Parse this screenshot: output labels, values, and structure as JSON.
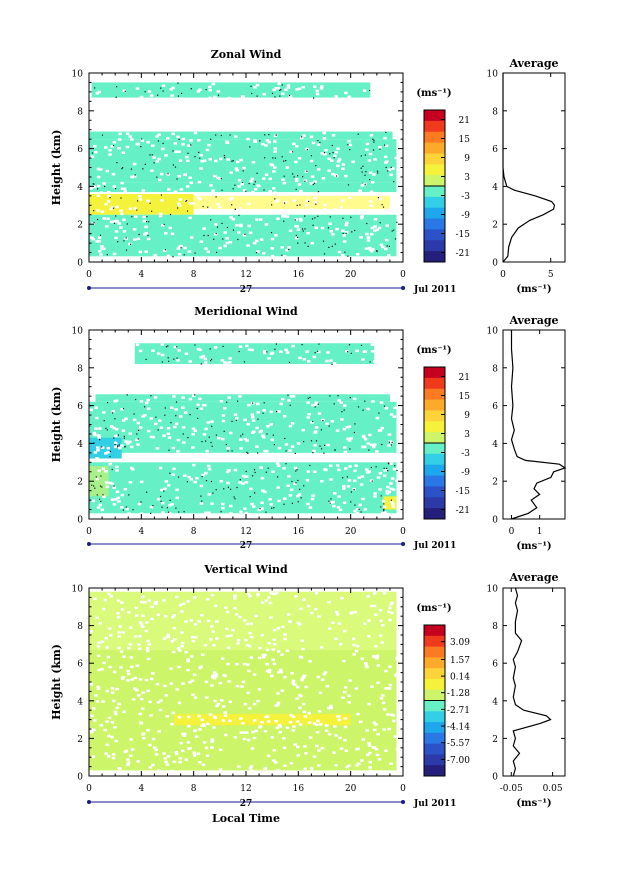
{
  "chart_data": [
    {
      "type": "heatmap",
      "title": "Zonal Wind",
      "xlabel": "",
      "ylabel": "Height (km)",
      "xlim": [
        0,
        24
      ],
      "ylim": [
        0,
        10
      ],
      "x_ticks": [
        "0",
        "4",
        "8",
        "12",
        "16",
        "20",
        "0"
      ],
      "y_ticks": [
        "0",
        "2",
        "4",
        "6",
        "8",
        "10"
      ],
      "date_bar": {
        "day": "27",
        "month_label": "Jul 2011"
      },
      "colorbar": {
        "unit": "(ms⁻¹)",
        "ticks": [
          "21",
          "15",
          "9",
          "3",
          "-3",
          "-9",
          "-15",
          "-21"
        ],
        "range": [
          -24,
          24
        ]
      },
      "bands": [
        {
          "y0": 8.7,
          "y1": 9.5,
          "x0": 0.2,
          "x1": 21.5,
          "color": "#66f0c6"
        },
        {
          "y0": 6.5,
          "y1": 6.9,
          "x0": 0.0,
          "x1": 23.2,
          "color": "#66f0c6"
        },
        {
          "y0": 4.2,
          "y1": 6.5,
          "x0": 0.0,
          "x1": 23.5,
          "color": "#66f0c6"
        },
        {
          "y0": 3.7,
          "y1": 4.2,
          "x0": 0.0,
          "x1": 23.5,
          "color": "#66f0c6"
        },
        {
          "y0": 2.5,
          "y1": 3.6,
          "x0": 0.0,
          "x1": 8.0,
          "color": "#f4f23a"
        },
        {
          "y0": 2.8,
          "y1": 3.5,
          "x0": 8.0,
          "x1": 23.0,
          "color": "#fffb8c"
        },
        {
          "y0": 1.9,
          "y1": 2.5,
          "x0": 0.0,
          "x1": 3.0,
          "color": "#f4f23a"
        },
        {
          "y0": 0.3,
          "y1": 2.5,
          "x0": 0.0,
          "x1": 23.5,
          "color": "#66f0c6"
        }
      ],
      "average": {
        "title": "Average",
        "xlabel": "(ms⁻¹)",
        "x_ticks": [
          "0",
          "5"
        ],
        "xlim": [
          0,
          6.5
        ],
        "y_ticks": [
          "0",
          "2",
          "4",
          "6",
          "8",
          "10"
        ],
        "ylim": [
          0,
          10
        ],
        "profile": [
          [
            0.0,
            0.0
          ],
          [
            0.3,
            0.5
          ],
          [
            0.8,
            0.6
          ],
          [
            1.3,
            0.9
          ],
          [
            1.8,
            1.6
          ],
          [
            2.2,
            2.8
          ],
          [
            2.5,
            4.2
          ],
          [
            2.8,
            5.3
          ],
          [
            3.0,
            5.4
          ],
          [
            3.2,
            5.1
          ],
          [
            3.5,
            3.4
          ],
          [
            3.8,
            1.2
          ],
          [
            4.0,
            0.4
          ],
          [
            4.5,
            0.1
          ],
          [
            5.0,
            0.0
          ],
          [
            10.0,
            0.0
          ]
        ]
      }
    },
    {
      "type": "heatmap",
      "title": "Meridional Wind",
      "xlabel": "",
      "ylabel": "Height (km)",
      "xlim": [
        0,
        24
      ],
      "ylim": [
        0,
        10
      ],
      "x_ticks": [
        "0",
        "4",
        "8",
        "12",
        "16",
        "20",
        "0"
      ],
      "y_ticks": [
        "0",
        "2",
        "4",
        "6",
        "8",
        "10"
      ],
      "date_bar": {
        "day": "27",
        "month_label": "Jul 2011"
      },
      "colorbar": {
        "unit": "(ms⁻¹)",
        "ticks": [
          "21",
          "15",
          "9",
          "3",
          "-3",
          "-9",
          "-15",
          "-21"
        ],
        "range": [
          -24,
          24
        ]
      },
      "bands": [
        {
          "y0": 8.2,
          "y1": 9.3,
          "x0": 3.5,
          "x1": 21.8,
          "color": "#66f0c6"
        },
        {
          "y0": 6.2,
          "y1": 6.6,
          "x0": 0.5,
          "x1": 23.0,
          "color": "#66f0c6"
        },
        {
          "y0": 3.5,
          "y1": 6.2,
          "x0": 0.0,
          "x1": 23.5,
          "color": "#66f0c6"
        },
        {
          "y0": 3.2,
          "y1": 4.3,
          "x0": 0.0,
          "x1": 2.5,
          "color": "#33cfe6"
        },
        {
          "y0": 0.3,
          "y1": 3.0,
          "x0": 0.0,
          "x1": 23.5,
          "color": "#66f0c6"
        },
        {
          "y0": 1.2,
          "y1": 2.8,
          "x0": 0.0,
          "x1": 1.5,
          "color": "#a8f08a"
        },
        {
          "y0": 0.5,
          "y1": 1.2,
          "x0": 22.5,
          "x1": 23.5,
          "color": "#f4f23a"
        }
      ],
      "average": {
        "title": "Average",
        "xlabel": "(ms⁻¹)",
        "x_ticks": [
          "0",
          "1"
        ],
        "xlim": [
          -0.3,
          1.9
        ],
        "y_ticks": [
          "0",
          "2",
          "4",
          "6",
          "8",
          "10"
        ],
        "ylim": [
          0,
          10
        ],
        "profile": [
          [
            0.0,
            0.0
          ],
          [
            0.3,
            0.6
          ],
          [
            0.6,
            0.9
          ],
          [
            1.0,
            0.7
          ],
          [
            1.3,
            1.0
          ],
          [
            1.6,
            0.8
          ],
          [
            1.9,
            0.9
          ],
          [
            2.2,
            1.4
          ],
          [
            2.5,
            1.5
          ],
          [
            2.7,
            1.9
          ],
          [
            2.9,
            1.7
          ],
          [
            3.1,
            0.5
          ],
          [
            3.3,
            0.2
          ],
          [
            3.7,
            0.1
          ],
          [
            4.2,
            0.0
          ],
          [
            4.7,
            0.1
          ],
          [
            5.3,
            0.0
          ],
          [
            6.0,
            0.05
          ],
          [
            7.0,
            0.0
          ],
          [
            8.0,
            0.05
          ],
          [
            9.0,
            0.0
          ],
          [
            10.0,
            0.0
          ]
        ]
      }
    },
    {
      "type": "heatmap",
      "title": "Vertical Wind",
      "xlabel": "Local Time",
      "ylabel": "Height (km)",
      "xlim": [
        0,
        24
      ],
      "ylim": [
        0,
        10
      ],
      "x_ticks": [
        "0",
        "4",
        "8",
        "12",
        "16",
        "20",
        "0"
      ],
      "y_ticks": [
        "0",
        "2",
        "4",
        "6",
        "8",
        "10"
      ],
      "date_bar": {
        "day": "27",
        "month_label": "Jul 2011"
      },
      "colorbar": {
        "unit": "(ms⁻¹)",
        "ticks": [
          "3.09",
          "1.57",
          "0.14",
          "-1.28",
          "-2.71",
          "-4.14",
          "-5.57",
          "-7.00"
        ],
        "range": [
          -8.42,
          4.52
        ]
      },
      "bands": [
        {
          "y0": 6.7,
          "y1": 9.8,
          "x0": 0.0,
          "x1": 23.5,
          "color": "#d9fa7a"
        },
        {
          "y0": 0.3,
          "y1": 6.7,
          "x0": 0.0,
          "x1": 23.5,
          "color": "#ccf56a"
        },
        {
          "y0": 2.7,
          "y1": 3.3,
          "x0": 6.5,
          "x1": 20.0,
          "color": "#f4f23a"
        }
      ],
      "average": {
        "title": "Average",
        "xlabel": "(ms⁻¹)",
        "x_ticks": [
          "-0.05",
          "0.05"
        ],
        "xlim": [
          -0.07,
          0.08
        ],
        "y_ticks": [
          "0",
          "2",
          "4",
          "6",
          "8",
          "10"
        ],
        "ylim": [
          0,
          10
        ],
        "profile": [
          [
            0.0,
            -0.045
          ],
          [
            0.4,
            -0.04
          ],
          [
            0.8,
            -0.045
          ],
          [
            1.2,
            -0.03
          ],
          [
            1.6,
            -0.045
          ],
          [
            2.0,
            -0.04
          ],
          [
            2.4,
            -0.045
          ],
          [
            2.8,
            0.02
          ],
          [
            3.0,
            0.045
          ],
          [
            3.2,
            0.035
          ],
          [
            3.5,
            -0.02
          ],
          [
            3.8,
            -0.04
          ],
          [
            4.2,
            -0.045
          ],
          [
            4.8,
            -0.04
          ],
          [
            5.2,
            -0.045
          ],
          [
            5.8,
            -0.04
          ],
          [
            6.2,
            -0.045
          ],
          [
            6.6,
            -0.035
          ],
          [
            7.2,
            -0.025
          ],
          [
            7.6,
            -0.04
          ],
          [
            8.2,
            -0.04
          ],
          [
            8.8,
            -0.035
          ],
          [
            9.2,
            -0.04
          ],
          [
            9.6,
            -0.035
          ],
          [
            10.0,
            -0.04
          ]
        ]
      }
    }
  ]
}
